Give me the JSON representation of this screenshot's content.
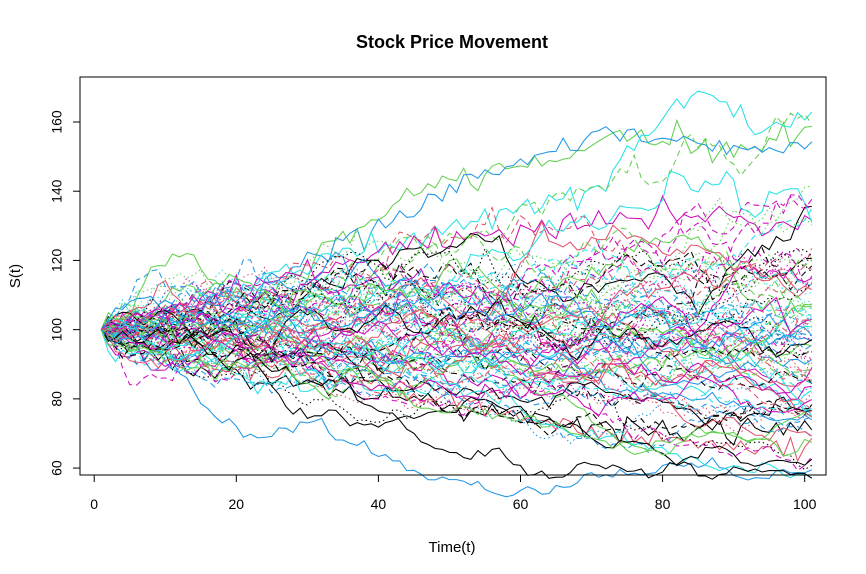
{
  "chart_data": {
    "type": "line",
    "title": "Stock Price Movement",
    "xlabel": "Time(t)",
    "ylabel": "S(t)",
    "xlim": [
      -2,
      103
    ],
    "ylim": [
      58,
      173
    ],
    "x_ticks": [
      0,
      20,
      40,
      60,
      80,
      100
    ],
    "y_ticks": [
      60,
      80,
      100,
      120,
      140,
      160
    ],
    "x_tick_labels": [
      "0",
      "20",
      "40",
      "60",
      "80",
      "100"
    ],
    "y_tick_labels": [
      "60",
      "80",
      "100",
      "120",
      "140",
      "160"
    ],
    "grid": false,
    "legend": "none",
    "n_paths": 100,
    "x_start": 1,
    "x_end": 101,
    "start_value": 100,
    "palette": [
      "#000000",
      "#DF536B",
      "#61D04F",
      "#2297E6",
      "#28E2E5",
      "#CD0BBC"
    ],
    "line_styles": [
      "solid",
      "dashed",
      "dotted"
    ],
    "series": [
      {
        "name": "",
        "points": [
          [
            1,
            100
          ],
          [
            14,
            88
          ],
          [
            30,
            84
          ],
          [
            50,
            78
          ],
          [
            70,
            72
          ],
          [
            85,
            70
          ],
          [
            101,
            72
          ]
        ]
      },
      {
        "name": "",
        "points": [
          [
            1,
            100
          ],
          [
            15,
            93
          ],
          [
            30,
            86
          ],
          [
            50,
            80
          ],
          [
            70,
            70
          ],
          [
            90,
            67
          ],
          [
            101,
            65
          ]
        ]
      },
      {
        "name": "",
        "points": [
          [
            1,
            100
          ],
          [
            20,
            104
          ],
          [
            45,
            140
          ],
          [
            65,
            150
          ],
          [
            75,
            157
          ],
          [
            90,
            152
          ],
          [
            101,
            157
          ]
        ]
      },
      {
        "name": "",
        "points": [
          [
            1,
            100
          ],
          [
            20,
            110
          ],
          [
            40,
            130
          ],
          [
            60,
            150
          ],
          [
            75,
            157
          ],
          [
            90,
            152
          ],
          [
            101,
            154
          ]
        ]
      },
      {
        "name": "",
        "points": [
          [
            1,
            100
          ],
          [
            25,
            115
          ],
          [
            50,
            130
          ],
          [
            70,
            140
          ],
          [
            85,
            170
          ],
          [
            95,
            158
          ],
          [
            101,
            160
          ]
        ]
      },
      {
        "name": "",
        "points": [
          [
            1,
            100
          ],
          [
            20,
            112
          ],
          [
            45,
            125
          ],
          [
            60,
            128
          ],
          [
            80,
            134
          ],
          [
            95,
            130
          ],
          [
            101,
            132
          ]
        ]
      },
      {
        "name": "",
        "points": [
          [
            1,
            100
          ],
          [
            20,
            98
          ],
          [
            40,
            92
          ],
          [
            60,
            85
          ],
          [
            80,
            78
          ],
          [
            101,
            75
          ]
        ]
      },
      {
        "name": "",
        "points": [
          [
            1,
            100
          ],
          [
            20,
            105
          ],
          [
            40,
            110
          ],
          [
            60,
            112
          ],
          [
            80,
            118
          ],
          [
            101,
            120
          ]
        ]
      }
    ]
  }
}
